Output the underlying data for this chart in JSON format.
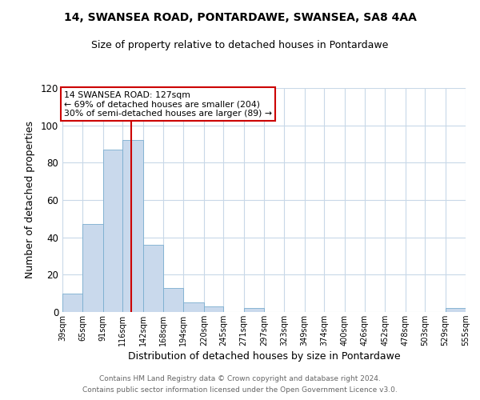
{
  "title": "14, SWANSEA ROAD, PONTARDAWE, SWANSEA, SA8 4AA",
  "subtitle": "Size of property relative to detached houses in Pontardawe",
  "xlabel": "Distribution of detached houses by size in Pontardawe",
  "ylabel": "Number of detached properties",
  "bin_edges": [
    39,
    65,
    91,
    116,
    142,
    168,
    194,
    220,
    245,
    271,
    297,
    323,
    349,
    374,
    400,
    426,
    452,
    478,
    503,
    529,
    555
  ],
  "bar_heights": [
    10,
    47,
    87,
    92,
    36,
    13,
    5,
    3,
    0,
    2,
    0,
    0,
    0,
    0,
    0,
    0,
    0,
    0,
    0,
    2
  ],
  "bar_color": "#c9d9ec",
  "bar_edge_color": "#7aadcf",
  "property_line_x": 127,
  "property_line_color": "#cc0000",
  "annotation_text": "14 SWANSEA ROAD: 127sqm\n← 69% of detached houses are smaller (204)\n30% of semi-detached houses are larger (89) →",
  "annotation_box_color": "#cc0000",
  "ylim": [
    0,
    120
  ],
  "yticks": [
    0,
    20,
    40,
    60,
    80,
    100,
    120
  ],
  "tick_labels": [
    "39sqm",
    "65sqm",
    "91sqm",
    "116sqm",
    "142sqm",
    "168sqm",
    "194sqm",
    "220sqm",
    "245sqm",
    "271sqm",
    "297sqm",
    "323sqm",
    "349sqm",
    "374sqm",
    "400sqm",
    "426sqm",
    "452sqm",
    "478sqm",
    "503sqm",
    "529sqm",
    "555sqm"
  ],
  "footer_line1": "Contains HM Land Registry data © Crown copyright and database right 2024.",
  "footer_line2": "Contains public sector information licensed under the Open Government Licence v3.0.",
  "background_color": "#ffffff",
  "grid_color": "#c8d8e8"
}
